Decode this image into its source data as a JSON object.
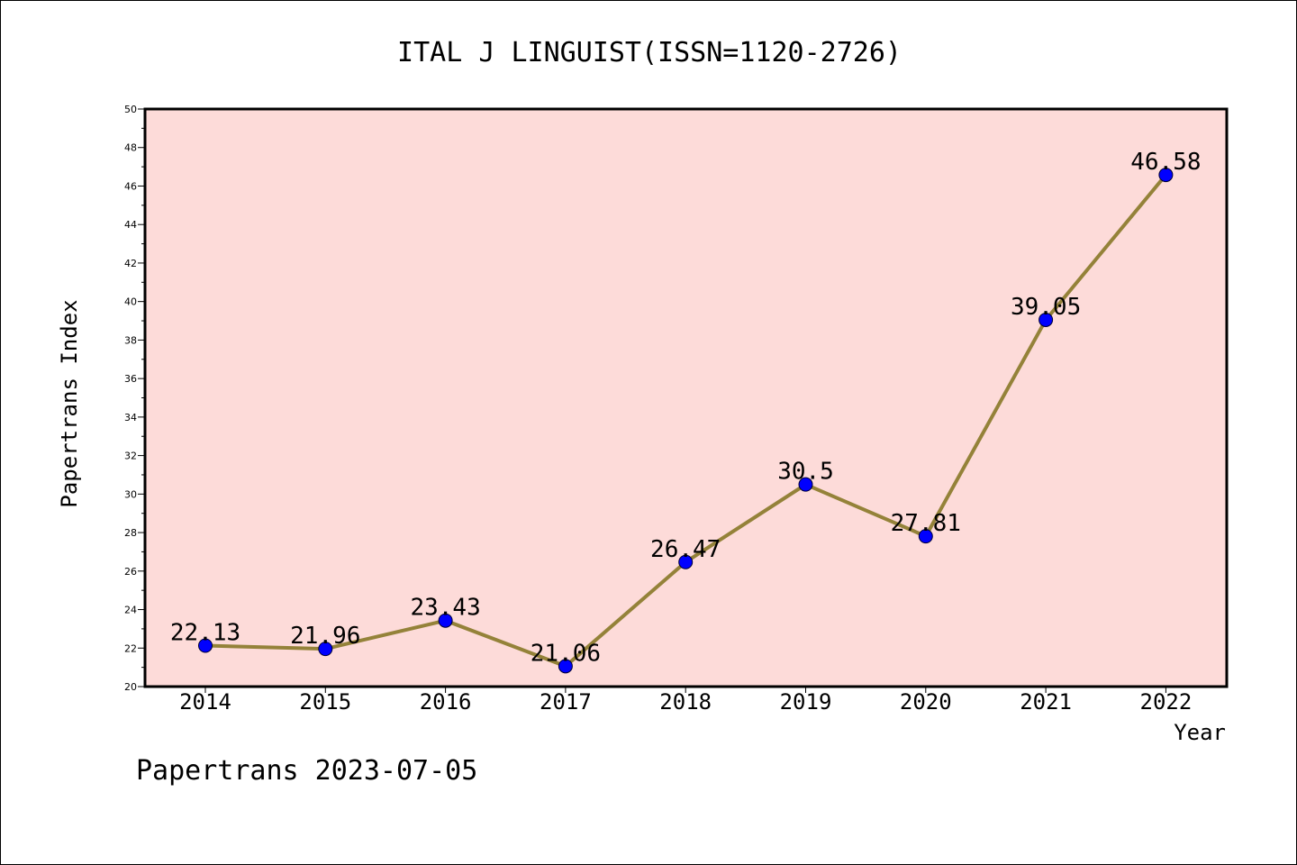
{
  "chart_data": {
    "type": "line",
    "title": "ITAL J LINGUIST(ISSN=1120-2726)",
    "xlabel": "Year",
    "ylabel": "Papertrans Index",
    "categories": [
      "2014",
      "2015",
      "2016",
      "2017",
      "2018",
      "2019",
      "2020",
      "2021",
      "2022"
    ],
    "series": [
      {
        "values": [
          22.13,
          21.96,
          23.43,
          21.06,
          26.47,
          30.5,
          27.81,
          39.05,
          46.58
        ],
        "labels": [
          "22.13",
          "21.96",
          "23.43",
          "21.06",
          "26.47",
          "30.5",
          "27.81",
          "39.05",
          "46.58"
        ]
      }
    ],
    "ylim": [
      20,
      50
    ],
    "ytick_step": 2,
    "yticks": [
      "20",
      "22",
      "24",
      "26",
      "28",
      "30",
      "32",
      "34",
      "36",
      "38",
      "40",
      "42",
      "44",
      "46",
      "48",
      "50"
    ],
    "grid": false,
    "legend": "none",
    "colors": {
      "plot_background": "#fddbd9",
      "line": "#948239",
      "marker": "#0000ff"
    }
  },
  "footer": {
    "text": "Papertrans 2023-07-05"
  }
}
